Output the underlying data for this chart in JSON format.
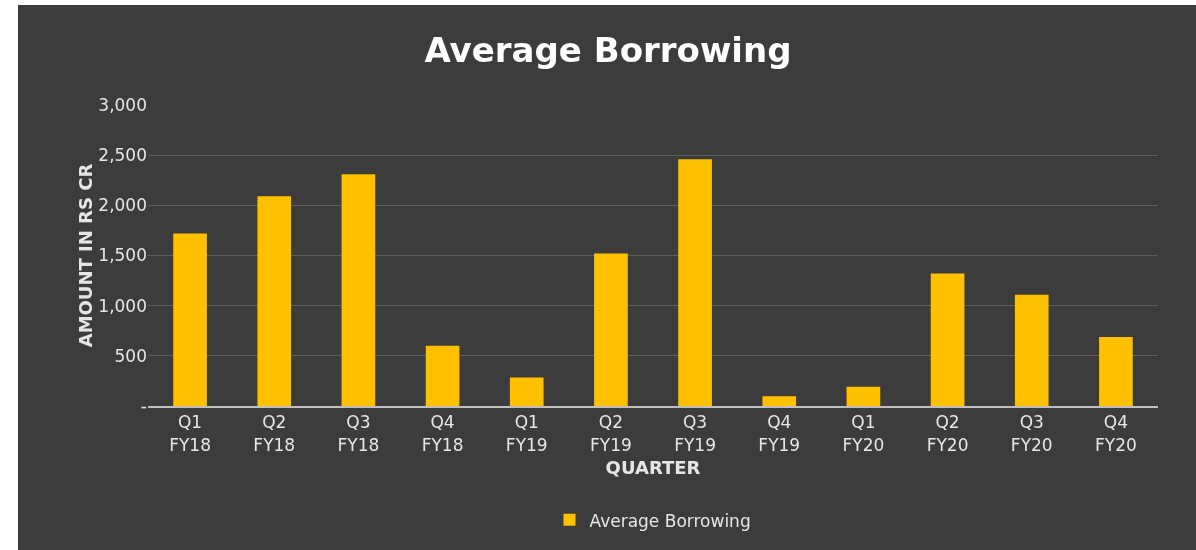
{
  "chart_data": {
    "type": "bar",
    "title": "Average Borrowing",
    "xlabel": "QUARTER",
    "ylabel": "AMOUNT IN RS CR",
    "categories": [
      "Q1 FY18",
      "Q2 FY18",
      "Q3 FY18",
      "Q4 FY18",
      "Q1 FY19",
      "Q2 FY19",
      "Q3 FY19",
      "Q4 FY19",
      "Q1 FY20",
      "Q2 FY20",
      "Q3 FY20",
      "Q4 FY20"
    ],
    "series": [
      {
        "name": "Average Borrowing",
        "color": "#ffc000",
        "values": [
          1720,
          2090,
          2310,
          600,
          285,
          1520,
          2460,
          96,
          192,
          1320,
          1110,
          687
        ]
      }
    ],
    "ylim": [
      0,
      3000
    ],
    "yticks": [
      {
        "value": 0,
        "label": "-"
      },
      500,
      {
        "value": 1000,
        "label": "1,000"
      },
      {
        "value": 1500,
        "label": "1,500"
      },
      {
        "value": 2000,
        "label": "2,000"
      },
      {
        "value": 2500,
        "label": "2,500"
      },
      {
        "value": 3000,
        "label": "3,000"
      }
    ],
    "grid": "y",
    "legend": "bottom"
  }
}
